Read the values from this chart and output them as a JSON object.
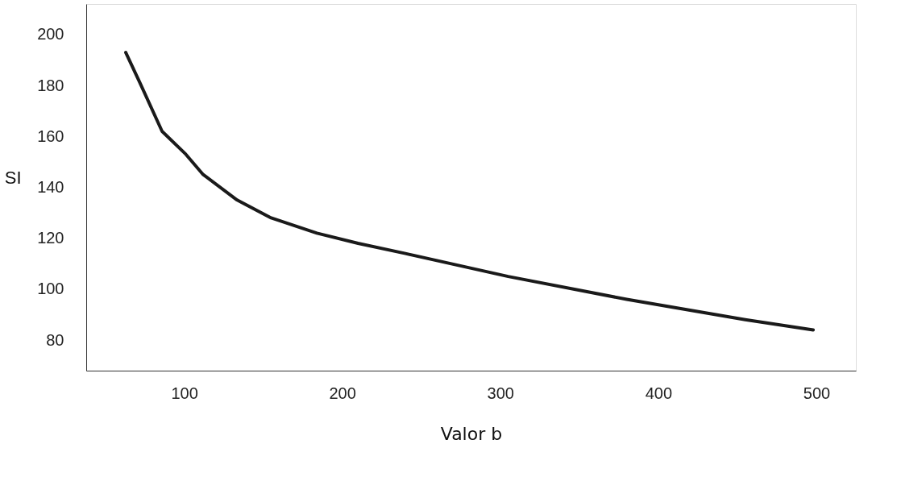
{
  "chart_data": {
    "type": "line",
    "xlabel": "Valor b",
    "ylabel": "SI",
    "x": [
      63,
      72,
      86,
      101,
      112,
      133.5,
      155,
      184,
      210,
      240,
      305,
      380,
      455,
      498
    ],
    "series": [
      {
        "color": "#1a1a1a",
        "values": [
          193,
          181,
          162,
          153,
          145,
          135,
          128,
          122,
          118,
          114,
          105,
          96,
          88,
          84
        ]
      }
    ],
    "xlim": [
      38,
      525
    ],
    "ylim": [
      68,
      212
    ],
    "xticks": [
      100,
      200,
      300,
      400,
      500
    ],
    "yticks": [
      80,
      100,
      120,
      140,
      160,
      180,
      200
    ],
    "grid": false,
    "marker": "none",
    "line_style": "solid"
  }
}
